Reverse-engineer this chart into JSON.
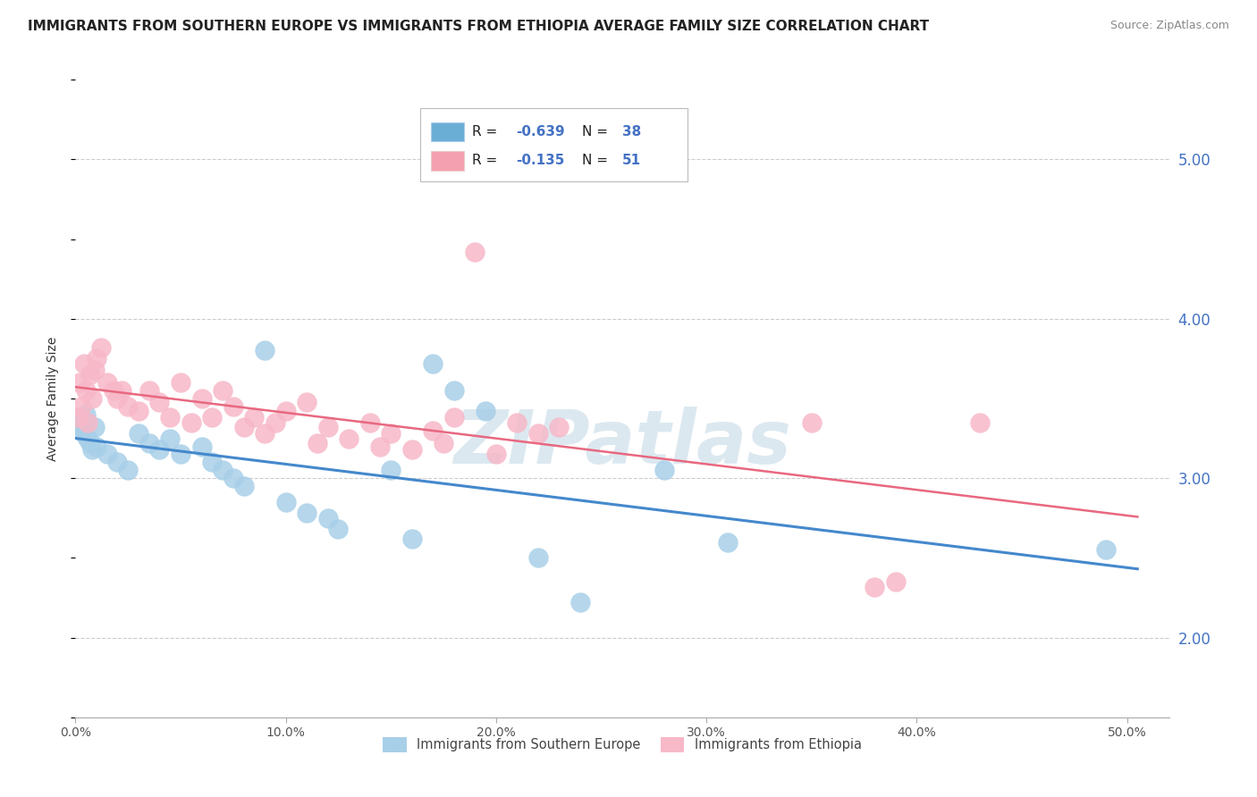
{
  "title": "IMMIGRANTS FROM SOUTHERN EUROPE VS IMMIGRANTS FROM ETHIOPIA AVERAGE FAMILY SIZE CORRELATION CHART",
  "source": "Source: ZipAtlas.com",
  "ylabel": "Average Family Size",
  "right_yticks": [
    2.0,
    3.0,
    4.0,
    5.0
  ],
  "watermark": "ZIPatlas",
  "legend_blue_R_val": "-0.639",
  "legend_blue_N_val": "38",
  "legend_pink_R_val": "-0.135",
  "legend_pink_N_val": "51",
  "legend_label_blue": "Immigrants from Southern Europe",
  "legend_label_pink": "Immigrants from Ethiopia",
  "blue_scatter_color": "#a8cfe8",
  "pink_scatter_color": "#f7b8c8",
  "blue_line_color": "#4488cc",
  "pink_line_color": "#e86880",
  "legend_box_color": "#6aaed6",
  "legend_pink_box_color": "#f4a0b0",
  "blue_scatter": [
    [
      0.001,
      3.38
    ],
    [
      0.002,
      3.32
    ],
    [
      0.003,
      3.3
    ],
    [
      0.004,
      3.28
    ],
    [
      0.005,
      3.4
    ],
    [
      0.006,
      3.25
    ],
    [
      0.007,
      3.22
    ],
    [
      0.008,
      3.18
    ],
    [
      0.009,
      3.32
    ],
    [
      0.01,
      3.2
    ],
    [
      0.015,
      3.15
    ],
    [
      0.02,
      3.1
    ],
    [
      0.025,
      3.05
    ],
    [
      0.03,
      3.28
    ],
    [
      0.035,
      3.22
    ],
    [
      0.04,
      3.18
    ],
    [
      0.045,
      3.25
    ],
    [
      0.05,
      3.15
    ],
    [
      0.06,
      3.2
    ],
    [
      0.065,
      3.1
    ],
    [
      0.07,
      3.05
    ],
    [
      0.075,
      3.0
    ],
    [
      0.08,
      2.95
    ],
    [
      0.09,
      3.8
    ],
    [
      0.1,
      2.85
    ],
    [
      0.11,
      2.78
    ],
    [
      0.12,
      2.75
    ],
    [
      0.125,
      2.68
    ],
    [
      0.15,
      3.05
    ],
    [
      0.16,
      2.62
    ],
    [
      0.17,
      3.72
    ],
    [
      0.18,
      3.55
    ],
    [
      0.195,
      3.42
    ],
    [
      0.22,
      2.5
    ],
    [
      0.24,
      2.22
    ],
    [
      0.28,
      3.05
    ],
    [
      0.31,
      2.6
    ],
    [
      0.49,
      2.55
    ]
  ],
  "pink_scatter": [
    [
      0.001,
      3.38
    ],
    [
      0.002,
      3.6
    ],
    [
      0.003,
      3.45
    ],
    [
      0.004,
      3.72
    ],
    [
      0.005,
      3.55
    ],
    [
      0.006,
      3.35
    ],
    [
      0.007,
      3.65
    ],
    [
      0.008,
      3.5
    ],
    [
      0.009,
      3.68
    ],
    [
      0.01,
      3.75
    ],
    [
      0.012,
      3.82
    ],
    [
      0.015,
      3.6
    ],
    [
      0.018,
      3.55
    ],
    [
      0.02,
      3.5
    ],
    [
      0.022,
      3.55
    ],
    [
      0.025,
      3.45
    ],
    [
      0.03,
      3.42
    ],
    [
      0.035,
      3.55
    ],
    [
      0.04,
      3.48
    ],
    [
      0.045,
      3.38
    ],
    [
      0.05,
      3.6
    ],
    [
      0.055,
      3.35
    ],
    [
      0.06,
      3.5
    ],
    [
      0.065,
      3.38
    ],
    [
      0.07,
      3.55
    ],
    [
      0.075,
      3.45
    ],
    [
      0.08,
      3.32
    ],
    [
      0.085,
      3.38
    ],
    [
      0.09,
      3.28
    ],
    [
      0.095,
      3.35
    ],
    [
      0.1,
      3.42
    ],
    [
      0.11,
      3.48
    ],
    [
      0.115,
      3.22
    ],
    [
      0.12,
      3.32
    ],
    [
      0.13,
      3.25
    ],
    [
      0.14,
      3.35
    ],
    [
      0.145,
      3.2
    ],
    [
      0.15,
      3.28
    ],
    [
      0.16,
      3.18
    ],
    [
      0.17,
      3.3
    ],
    [
      0.175,
      3.22
    ],
    [
      0.18,
      3.38
    ],
    [
      0.19,
      4.42
    ],
    [
      0.2,
      3.15
    ],
    [
      0.21,
      3.35
    ],
    [
      0.22,
      3.28
    ],
    [
      0.23,
      3.32
    ],
    [
      0.35,
      3.35
    ],
    [
      0.38,
      2.32
    ],
    [
      0.39,
      2.35
    ],
    [
      0.43,
      3.35
    ]
  ],
  "xlim": [
    0.0,
    0.52
  ],
  "ylim": [
    1.5,
    5.5
  ],
  "grid_color": "#cccccc",
  "background_color": "#ffffff",
  "title_fontsize": 11,
  "source_fontsize": 9,
  "axis_fontsize": 10,
  "tick_fontsize": 10,
  "watermark_color": "#dce8f0",
  "watermark_fontsize": 60
}
